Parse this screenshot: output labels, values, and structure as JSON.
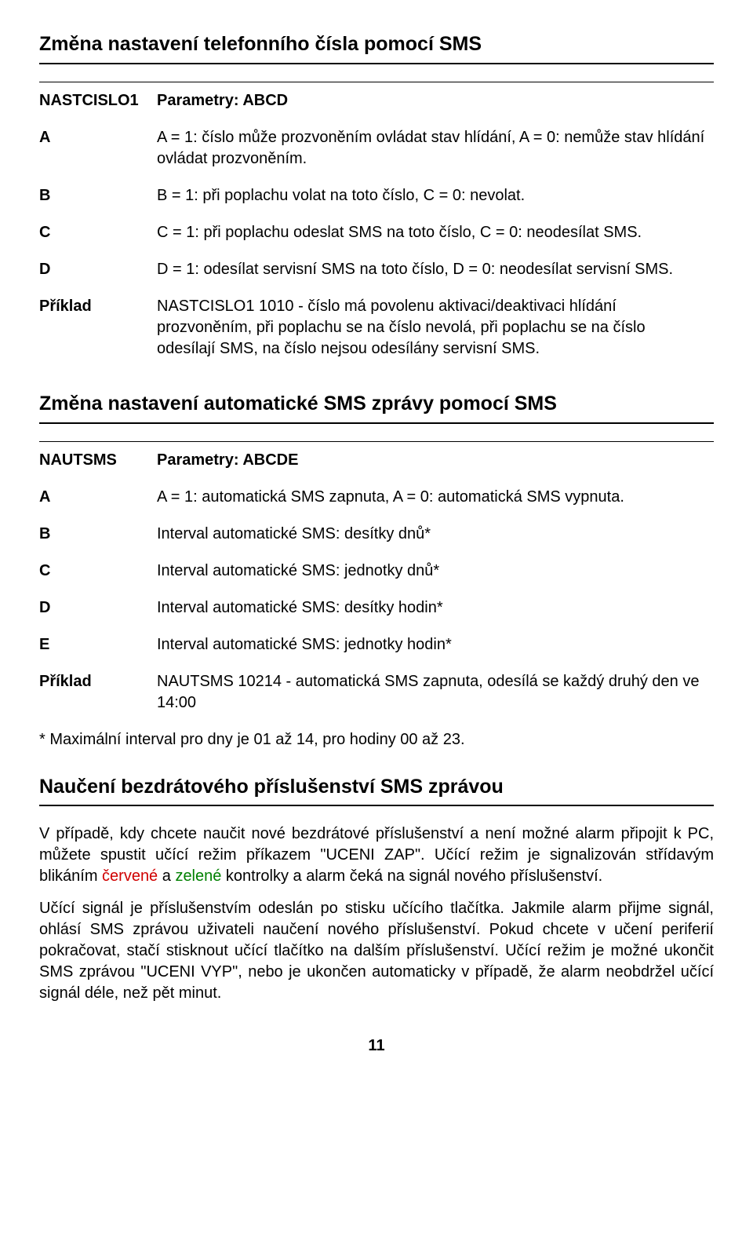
{
  "colors": {
    "text": "#000000",
    "background": "#ffffff",
    "rule": "#000000",
    "red": "#d00000",
    "green": "#008000"
  },
  "typography": {
    "body_fontsize_pt": 15,
    "heading_fontsize_pt": 19,
    "font_family": "Arial"
  },
  "section1": {
    "title": "Změna nastavení telefonního čísla pomocí SMS",
    "rows": [
      {
        "key": "NASTCISLO1",
        "val": "Parametry: ABCD",
        "header": true
      },
      {
        "key": "A",
        "val": "A = 1: číslo může prozvoněním ovládat stav hlídání, A = 0: nemůže stav hlídání ovládat prozvoněním."
      },
      {
        "key": "B",
        "val": "B = 1: při poplachu volat na toto číslo, C = 0:  nevolat."
      },
      {
        "key": "C",
        "val": "C = 1: při poplachu odeslat SMS na toto číslo, C = 0: neodesílat SMS."
      },
      {
        "key": "D",
        "val": "D = 1: odesílat servisní SMS na toto číslo, D = 0: neodesílat servisní SMS."
      },
      {
        "key": "Příklad",
        "val": "NASTCISLO1 1010 - číslo má povolenu aktivaci/deaktivaci hlídání prozvoněním, při poplachu se na číslo nevolá, při poplachu se na číslo odesílají SMS, na číslo nejsou odesílány servisní SMS."
      }
    ]
  },
  "section2": {
    "title": "Změna nastavení automatické SMS zprávy pomocí SMS",
    "rows": [
      {
        "key": "NAUTSMS",
        "val": "Parametry: ABCDE",
        "header": true
      },
      {
        "key": "A",
        "val": "A = 1: automatická SMS zapnuta, A = 0: automatická SMS vypnuta."
      },
      {
        "key": "B",
        "val": "Interval automatické SMS: desítky dnů*"
      },
      {
        "key": "C",
        "val": "Interval automatické SMS: jednotky dnů*"
      },
      {
        "key": "D",
        "val": "Interval automatické SMS: desítky hodin*"
      },
      {
        "key": "E",
        "val": "Interval automatické SMS: jednotky hodin*"
      },
      {
        "key": "Příklad",
        "val": "NAUTSMS 10214 - automatická SMS zapnuta, odesílá se každý druhý den ve 14:00"
      }
    ],
    "note": "* Maximální interval pro dny je 01 až 14, pro hodiny 00 až 23."
  },
  "section3": {
    "title": "Naučení bezdrátového příslušenství SMS zprávou",
    "para1_pre": "V případě, kdy chcete naučit nové bezdrátové příslušenství a není možné alarm připojit k PC, můžete spustit učící režim příkazem \"UCENI ZAP\". Učící režim je signalizován střídavým blikáním ",
    "para1_red": "červené",
    "para1_mid": "  a ",
    "para1_green": "zelené",
    "para1_post": " kontrolky a alarm čeká na signál nového příslušenství.",
    "para2": "Učící signál je příslušenstvím odeslán po stisku učícího tlačítka. Jakmile  alarm přijme signál, ohlásí SMS zprávou uživateli naučení nového příslušenství. Pokud chcete v učení periferií pokračovat, stačí  stisknout učící tlačítko na dalším příslušenství. Učící režim je možné ukončit SMS zprávou \"UCENI VYP\", nebo je ukončen automaticky v případě, že alarm neobdržel učící signál déle, než pět minut."
  },
  "page_number": "11"
}
